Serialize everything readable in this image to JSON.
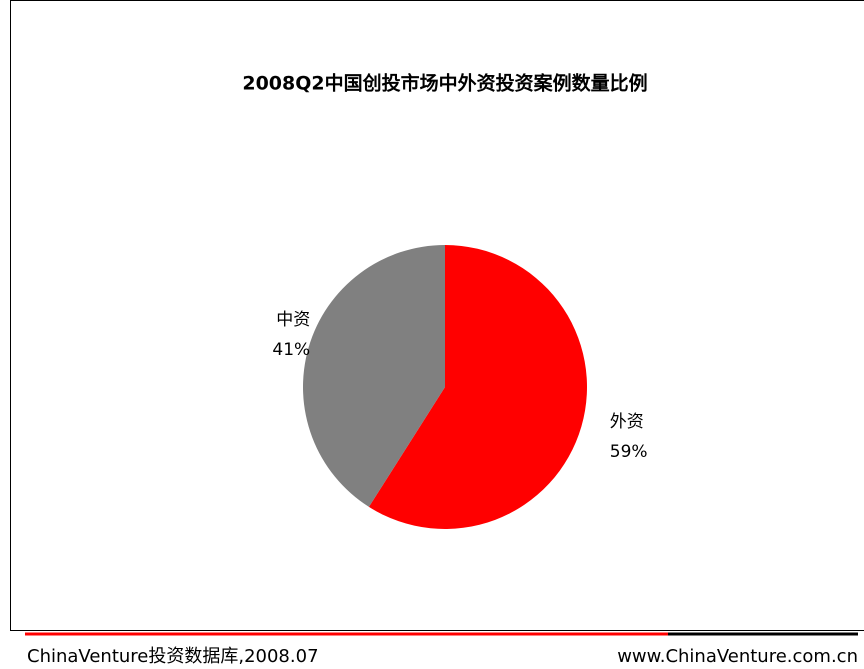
{
  "chart_data": {
    "type": "pie",
    "title": "2008Q2中国创投市场中外资投资案例数量比例",
    "categories": [
      "外资",
      "中资"
    ],
    "values": [
      59,
      41
    ],
    "value_labels": [
      "59%",
      "41%"
    ],
    "colors": [
      "#ff0000",
      "#808080"
    ],
    "source_left": "ChinaVenture投资数据库,2008.07",
    "source_right": "www.ChinaVenture.com.cn"
  }
}
